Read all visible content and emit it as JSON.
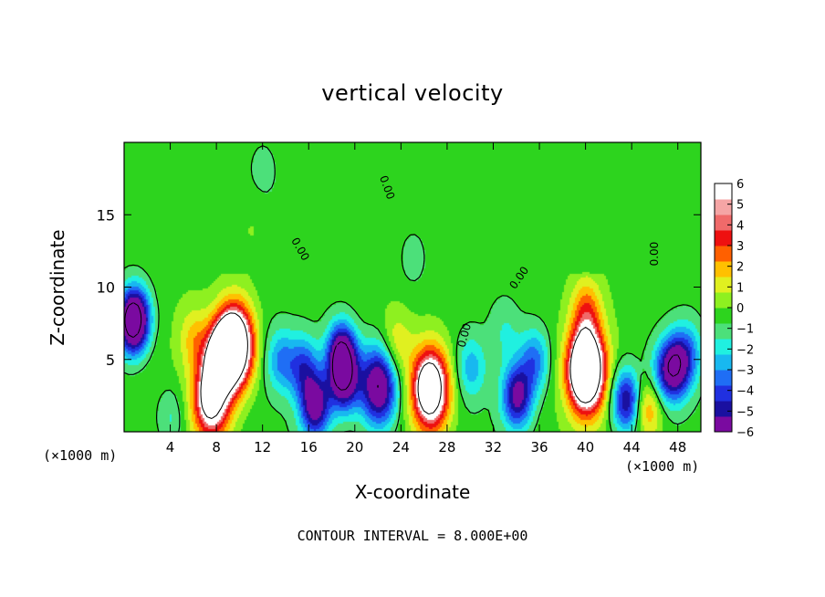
{
  "chart_data": {
    "type": "heatmap",
    "title": "vertical velocity",
    "xlabel": "X-coordinate",
    "ylabel": "Z-coordinate",
    "x_unit": "(×1000 m)",
    "x_ticks": [
      4,
      8,
      12,
      16,
      20,
      24,
      28,
      32,
      36,
      40,
      44,
      48
    ],
    "y_ticks": [
      5,
      10,
      15
    ],
    "xlim": [
      0,
      50
    ],
    "ylim": [
      0,
      20
    ],
    "colorbar": {
      "ticks": [
        6,
        5,
        4,
        3,
        2,
        1,
        0,
        -1,
        -2,
        -3,
        -4,
        -5,
        -6
      ],
      "range": [
        -6,
        6
      ],
      "colors": [
        "#7a0aa0",
        "#1a10a0",
        "#2030e0",
        "#1f6ef5",
        "#18b8f0",
        "#20f0e0",
        "#4ce07a",
        "#2dd41e",
        "#8ef020",
        "#e0f020",
        "#ffc000",
        "#ff6000",
        "#ee1010",
        "#f06a6a",
        "#f5a5a5",
        "#ffffff"
      ]
    },
    "contour_label": "0.00",
    "contour_interval_text": "CONTOUR INTERVAL = 8.000E+00",
    "features": [
      {
        "x": 8.3,
        "z": 5.2,
        "w": 6.5
      },
      {
        "x": 9.5,
        "z": 6.0,
        "w": 13
      },
      {
        "x": 7.5,
        "z": 2.3,
        "w": 9
      },
      {
        "x": 1.0,
        "z": 8.0,
        "w": -5.5
      },
      {
        "x": 0.6,
        "z": 7.5,
        "w": -6.5
      },
      {
        "x": 13.5,
        "z": 5.0,
        "w": -3.5
      },
      {
        "x": 15.5,
        "z": 4.5,
        "w": -4.5
      },
      {
        "x": 16.5,
        "z": 1.8,
        "w": -7.5
      },
      {
        "x": 18.8,
        "z": 5.5,
        "w": -8
      },
      {
        "x": 19.0,
        "z": 3.5,
        "w": -7
      },
      {
        "x": 22.0,
        "z": 3.2,
        "w": -9
      },
      {
        "x": 23.5,
        "z": 6.0,
        "w": 2.5
      },
      {
        "x": 26.5,
        "z": 3.0,
        "w": 11
      },
      {
        "x": 30.0,
        "z": 4.5,
        "w": -3
      },
      {
        "x": 34.0,
        "z": 2.5,
        "w": -7
      },
      {
        "x": 35.5,
        "z": 5.0,
        "w": -4
      },
      {
        "x": 40.0,
        "z": 4.3,
        "w": 14
      },
      {
        "x": 40.0,
        "z": 8.5,
        "w": 3.5
      },
      {
        "x": 43.5,
        "z": 2.2,
        "w": -7
      },
      {
        "x": 45.3,
        "z": 1.8,
        "w": 4
      },
      {
        "x": 46.5,
        "z": 4.0,
        "w": -3
      },
      {
        "x": 47.7,
        "z": 4.5,
        "w": -7
      },
      {
        "x": 48.8,
        "z": 5.5,
        "w": -3
      },
      {
        "x": 6.0,
        "z": 6.5,
        "w": 2.5
      },
      {
        "x": 33.0,
        "z": 7.0,
        "w": -1.5
      },
      {
        "x": 25.0,
        "z": 12.0,
        "w": -1.2
      },
      {
        "x": 11.0,
        "z": 14.0,
        "w": 1.2
      },
      {
        "x": 12.0,
        "z": 18.0,
        "w": -1.0
      },
      {
        "x": 36.0,
        "z": 17.0,
        "w": 1.0
      },
      {
        "x": 4.0,
        "z": 1.0,
        "w": -2.0
      }
    ]
  },
  "labels": {
    "title": "vertical velocity",
    "xlabel": "X-coordinate",
    "ylabel": "Z-coordinate",
    "x_unit_left": "(×1000 m)",
    "x_unit_right": "(×1000 m)",
    "footnote": "CONTOUR INTERVAL = 8.000E+00"
  }
}
